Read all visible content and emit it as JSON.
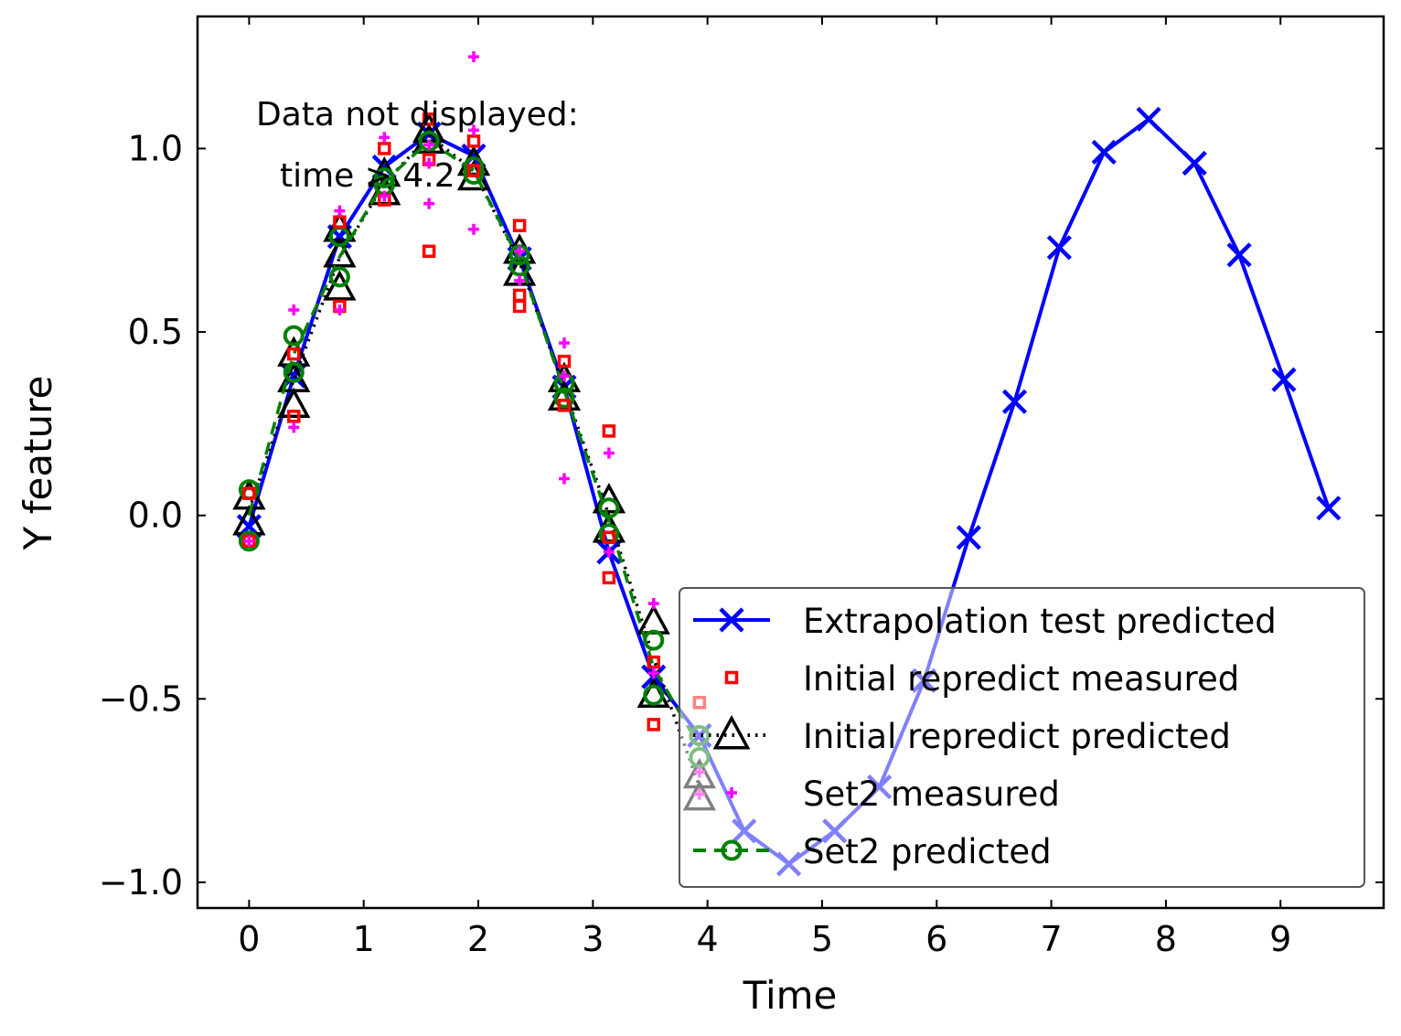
{
  "chart_data": {
    "type": "line",
    "xlabel": "Time",
    "ylabel": "Y feature",
    "xlim": [
      -0.45,
      9.9
    ],
    "ylim": [
      -1.07,
      1.36
    ],
    "xticks": [
      0,
      1,
      2,
      3,
      4,
      5,
      6,
      7,
      8,
      9
    ],
    "yticks": [
      -1.0,
      -0.5,
      0.0,
      0.5,
      1.0
    ],
    "ytick_labels": [
      "−1.0",
      "−0.5",
      "0.0",
      "0.5",
      "1.0"
    ],
    "legend_position": "lower-right",
    "annotation": [
      "Data not displayed:",
      "time > 4.2"
    ],
    "series": [
      {
        "name": "Extrapolation test predicted",
        "color": "#0000ff",
        "marker": "x",
        "linestyle": "solid",
        "x": [
          0.0,
          0.39,
          0.79,
          1.18,
          1.57,
          1.96,
          2.36,
          2.75,
          3.14,
          3.53,
          3.93,
          4.32,
          4.71,
          5.11,
          5.5,
          5.89,
          6.28,
          6.68,
          7.07,
          7.46,
          7.85,
          8.25,
          8.64,
          9.03,
          9.42
        ],
        "y": [
          -0.03,
          0.38,
          0.76,
          0.95,
          1.04,
          0.98,
          0.7,
          0.35,
          -0.1,
          -0.44,
          -0.6,
          -0.86,
          -0.95,
          -0.86,
          -0.74,
          -0.45,
          -0.06,
          0.31,
          0.73,
          0.99,
          1.08,
          0.96,
          0.71,
          0.37,
          0.02
        ]
      },
      {
        "name": "Initial repredict measured",
        "color": "#ff0000",
        "marker": "square",
        "linestyle": "none",
        "x": [
          0.0,
          0.0,
          0.39,
          0.39,
          0.79,
          0.79,
          1.18,
          1.18,
          1.57,
          1.57,
          1.57,
          1.96,
          1.96,
          2.36,
          2.36,
          2.36,
          2.75,
          2.75,
          3.14,
          3.14,
          3.14,
          3.53,
          3.53,
          3.93
        ],
        "y": [
          0.06,
          -0.07,
          0.44,
          0.27,
          0.8,
          0.57,
          1.0,
          0.86,
          0.72,
          1.08,
          0.97,
          1.02,
          0.94,
          0.79,
          0.6,
          0.57,
          0.42,
          0.3,
          0.23,
          -0.06,
          -0.17,
          -0.4,
          -0.57,
          -0.51
        ]
      },
      {
        "name": "Initial repredict predicted",
        "color": "#000000",
        "marker": "triangle",
        "linestyle": "dotted",
        "x": [
          0.0,
          0.0,
          0.39,
          0.39,
          0.39,
          0.79,
          0.79,
          0.79,
          1.18,
          1.18,
          1.57,
          1.57,
          1.96,
          1.96,
          2.36,
          2.36,
          2.75,
          2.75,
          3.14,
          3.14,
          3.53,
          3.53,
          3.93,
          3.93
        ],
        "y": [
          0.05,
          -0.02,
          0.44,
          0.37,
          0.3,
          0.78,
          0.71,
          0.62,
          0.93,
          0.88,
          1.05,
          1.02,
          0.96,
          0.92,
          0.72,
          0.66,
          0.37,
          0.32,
          0.04,
          -0.04,
          -0.29,
          -0.49,
          -0.71,
          -0.77
        ]
      },
      {
        "name": "Set2 measured",
        "color": "#ff00ff",
        "marker": "plus",
        "linestyle": "none",
        "x": [
          0.0,
          0.39,
          0.39,
          0.79,
          0.79,
          1.18,
          1.18,
          1.57,
          1.57,
          1.57,
          1.96,
          1.96,
          1.96,
          2.36,
          2.36,
          2.75,
          2.75,
          2.75,
          3.14,
          3.14,
          3.53,
          3.53,
          3.93,
          3.93
        ],
        "y": [
          -0.07,
          0.56,
          0.24,
          0.83,
          0.56,
          1.03,
          0.87,
          0.96,
          0.85,
          1.01,
          1.25,
          0.78,
          1.05,
          0.72,
          0.64,
          0.47,
          0.1,
          0.38,
          0.17,
          -0.1,
          -0.24,
          -0.43,
          -0.7,
          -0.76
        ]
      },
      {
        "name": "Set2 predicted",
        "color": "#008000",
        "marker": "circle",
        "linestyle": "dashed",
        "x": [
          0.0,
          0.0,
          0.39,
          0.39,
          0.79,
          0.79,
          1.18,
          1.18,
          1.57,
          1.96,
          1.96,
          2.36,
          2.36,
          2.75,
          2.75,
          3.14,
          3.14,
          3.53,
          3.53,
          3.93,
          3.93
        ],
        "y": [
          0.07,
          -0.07,
          0.49,
          0.39,
          0.76,
          0.65,
          0.92,
          0.9,
          1.02,
          0.95,
          0.93,
          0.71,
          0.68,
          0.36,
          0.32,
          0.02,
          -0.05,
          -0.34,
          -0.49,
          -0.6,
          -0.66
        ]
      }
    ]
  }
}
